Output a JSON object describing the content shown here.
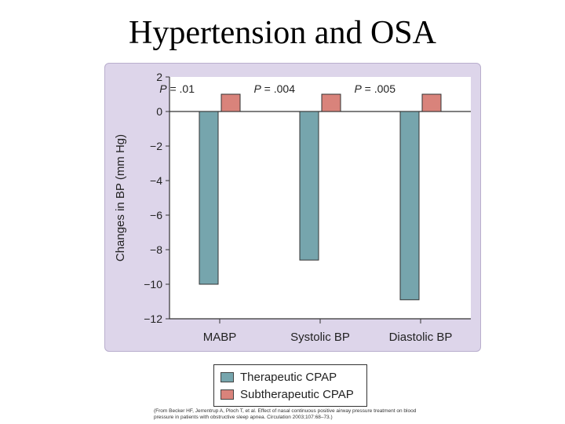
{
  "page_title": "Hypertension and OSA",
  "colors": {
    "therapeutic": "#76a5ad",
    "subtherapeutic": "#d9837b",
    "panel": "#ddd5ea",
    "axis": "#333333"
  },
  "legend": [
    {
      "label": "Therapeutic CPAP",
      "color": "#76a5ad"
    },
    {
      "label": "Subtherapeutic CPAP",
      "color": "#d9837b"
    }
  ],
  "citation": "(From Becker HF, Jerrentrup A, Ploch T, et al. Effect of nasal continuous positive airway pressure treatment on blood pressure in patients with obstructive sleep apnea. Circulation 2003;107:68–73.)",
  "chart_data": {
    "type": "bar",
    "title": "",
    "xlabel": "",
    "ylabel": "Changes in BP (mm Hg)",
    "ylim": [
      -12,
      2
    ],
    "yticks": [
      "2",
      "0",
      "−2",
      "−4",
      "−6",
      "−8",
      "−10",
      "−12"
    ],
    "categories": [
      "MABP",
      "Systolic BP",
      "Diastolic BP"
    ],
    "series": [
      {
        "name": "Therapeutic CPAP",
        "values": [
          -10.0,
          -8.6,
          -10.9
        ]
      },
      {
        "name": "Subtherapeutic CPAP",
        "values": [
          1.0,
          1.0,
          1.0
        ]
      }
    ],
    "p_values": [
      "= .01",
      "= .004",
      "= .005"
    ],
    "p_label": "P"
  }
}
